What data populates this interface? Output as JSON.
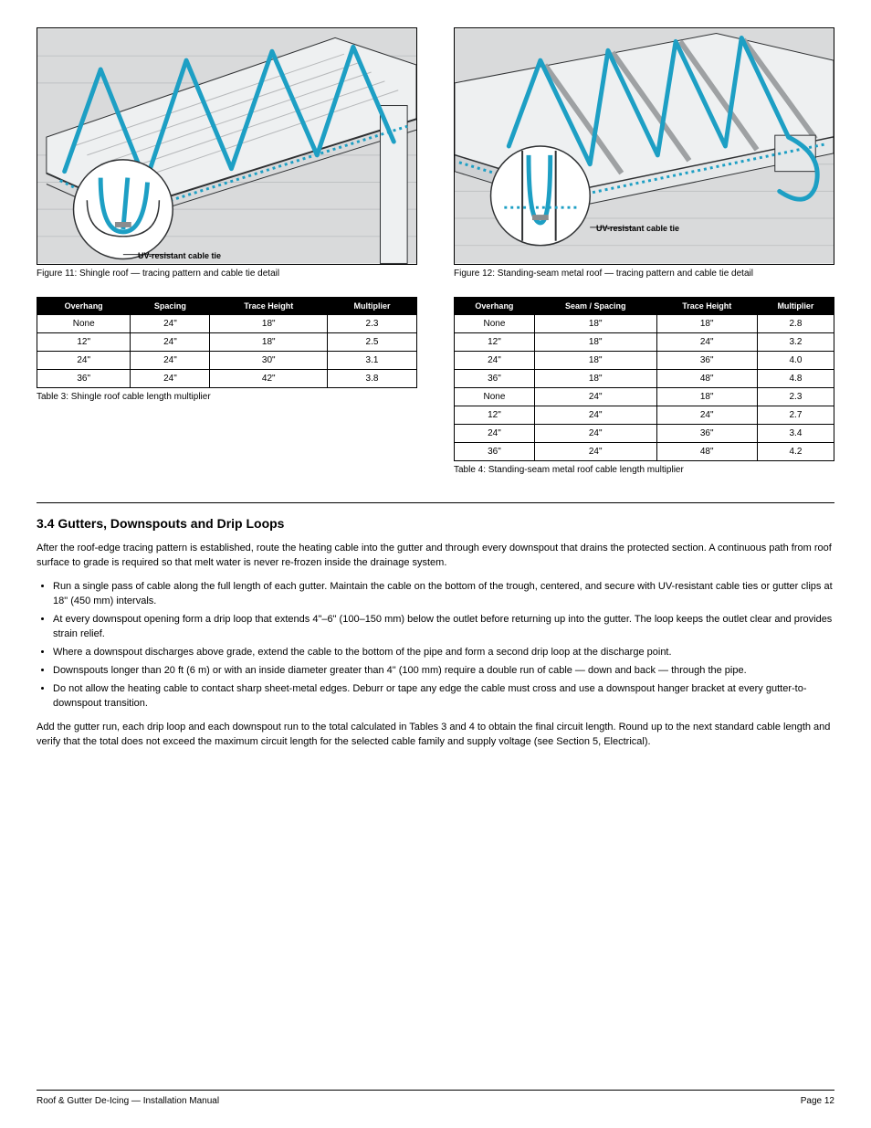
{
  "colors": {
    "cable": "#1d9fc4",
    "cable_dark": "#167e9c",
    "wall": "#d9dadb",
    "wall_line": "#bfc1c3",
    "roof_fill": "#eef0f1",
    "roof_line": "#b6b8ba",
    "outline": "#2f3133",
    "circle_fill": "#ffffff",
    "black": "#000000"
  },
  "figures": {
    "left": {
      "callout": "UV-resistant cable tie",
      "caption": "Figure 11: Shingle roof — tracing pattern and cable tie detail"
    },
    "right": {
      "callout": "UV-resistant cable tie",
      "caption": "Figure 12: Standing-seam metal roof — tracing pattern and cable tie detail"
    }
  },
  "tables": {
    "left": {
      "headers": [
        "Overhang",
        "Spacing",
        "Trace Height",
        "Multiplier"
      ],
      "rows": [
        [
          "None",
          "24\"",
          "18\"",
          "2.3"
        ],
        [
          "12\"",
          "24\"",
          "18\"",
          "2.5"
        ],
        [
          "24\"",
          "24\"",
          "30\"",
          "3.1"
        ],
        [
          "36\"",
          "24\"",
          "42\"",
          "3.8"
        ]
      ],
      "caption": "Table 3: Shingle roof cable length multiplier"
    },
    "right": {
      "headers": [
        "Overhang",
        "Seam / Spacing",
        "Trace Height",
        "Multiplier"
      ],
      "rows": [
        [
          "None",
          "18\"",
          "18\"",
          "2.8"
        ],
        [
          "12\"",
          "18\"",
          "24\"",
          "3.2"
        ],
        [
          "24\"",
          "18\"",
          "36\"",
          "4.0"
        ],
        [
          "36\"",
          "18\"",
          "48\"",
          "4.8"
        ],
        [
          "None",
          "24\"",
          "18\"",
          "2.3"
        ],
        [
          "12\"",
          "24\"",
          "24\"",
          "2.7"
        ],
        [
          "24\"",
          "24\"",
          "36\"",
          "3.4"
        ],
        [
          "36\"",
          "24\"",
          "48\"",
          "4.2"
        ]
      ],
      "caption": "Table 4: Standing-seam metal roof cable length multiplier"
    }
  },
  "section": {
    "title": "3.4  Gutters, Downspouts and Drip Loops",
    "p1": "After the roof-edge tracing pattern is established, route the heating cable into the gutter and through every downspout that drains the protected section. A continuous path from roof surface to grade is required so that melt water is never re-frozen inside the drainage system.",
    "bullets": [
      "Run a single pass of cable along the full length of each gutter. Maintain the cable on the bottom of the trough, centered, and secure with UV-resistant cable ties or gutter clips at 18\" (450&nbsp;mm) intervals.",
      "At every downspout opening form a drip loop that extends 4\"–6\" (100–150&nbsp;mm) below the outlet before returning up into the gutter. The loop keeps the outlet clear and provides strain relief.",
      "Where a downspout discharges above grade, extend the cable to the bottom of the pipe and form a second drip loop at the discharge point.",
      "Downspouts longer than 20&nbsp;ft (6&nbsp;m) or with an inside diameter greater than 4\" (100&nbsp;mm) require a double run of cable — down and back — through the pipe.",
      "Do not allow the heating cable to contact sharp sheet-metal edges. Deburr or tape any edge the cable must cross and use a downspout hanger bracket at every gutter-to-downspout transition."
    ],
    "p2": "Add the gutter run, each drip loop and each downspout run to the total calculated in Tables 3 and 4 to obtain the final circuit length. Round up to the next standard cable length and verify that the total does not exceed the maximum circuit length for the selected cable family and supply voltage (see Section 5, Electrical)."
  },
  "footer": {
    "left": "Roof & Gutter De-Icing — Installation Manual",
    "right": "Page 12"
  }
}
